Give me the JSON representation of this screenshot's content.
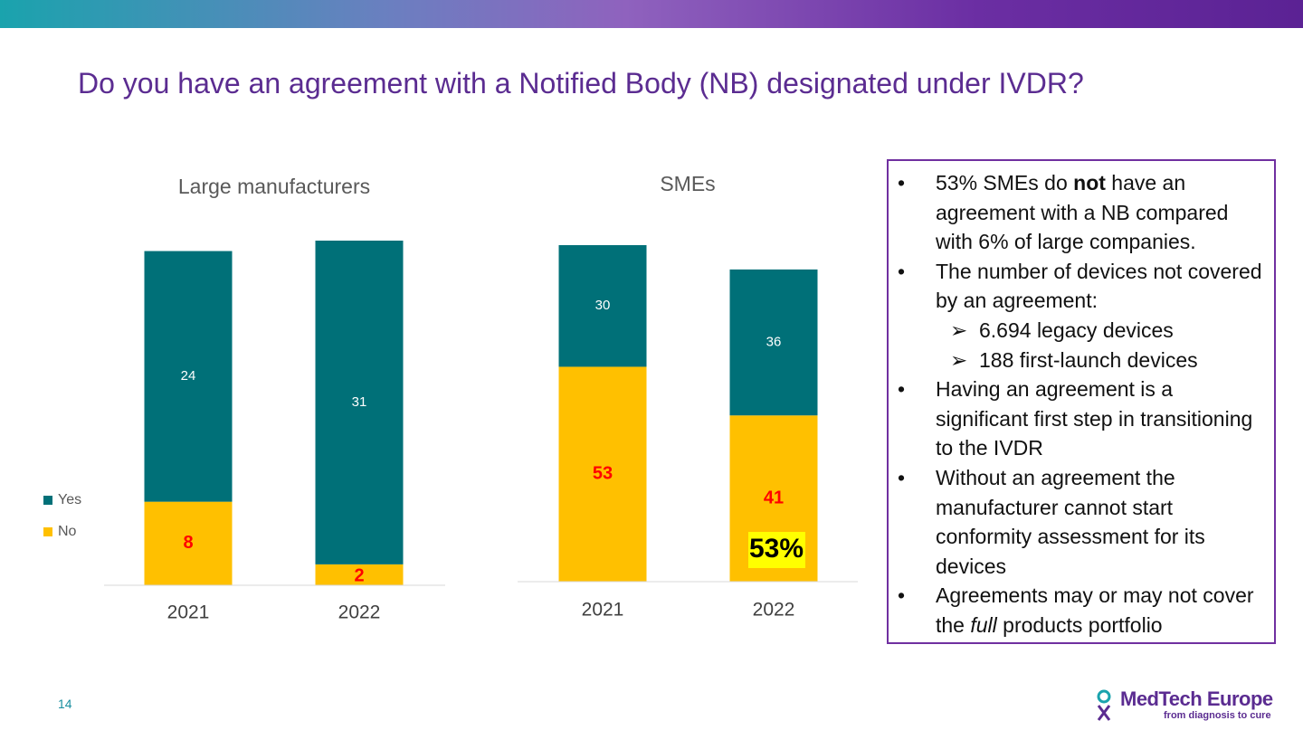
{
  "title": "Do you have an agreement with a Notified Body (NB) designated under IVDR?",
  "chart_data": [
    {
      "type": "stacked_bar",
      "title": "Large manufacturers",
      "categories": [
        "2021",
        "2022"
      ],
      "legend": "left",
      "series": [
        {
          "name": "No",
          "color": "#FFC000",
          "label_color": "#FF0000",
          "values": [
            8,
            2
          ]
        },
        {
          "name": "Yes",
          "color": "#007078",
          "label_color": "#FFFFFF",
          "values": [
            24,
            31
          ]
        }
      ]
    },
    {
      "type": "stacked_bar",
      "title": "SMEs",
      "categories": [
        "2021",
        "2022"
      ],
      "annotation": "53%",
      "series": [
        {
          "name": "No",
          "color": "#FFC000",
          "label_color": "#FF0000",
          "values": [
            53,
            41
          ]
        },
        {
          "name": "Yes",
          "color": "#007078",
          "label_color": "#FFFFFF",
          "values": [
            30,
            36
          ]
        }
      ]
    }
  ],
  "notes": [
    {
      "parts": [
        {
          "text": "53% SMEs do "
        },
        {
          "text": "not",
          "bold": true
        },
        {
          "text": " have an agreement with a NB compared with 6% of large companies."
        }
      ]
    },
    {
      "parts": [
        {
          "text": "The number of devices not covered by an agreement:"
        }
      ],
      "sub": [
        "6.694 legacy devices",
        "188 first-launch devices"
      ]
    },
    {
      "parts": [
        {
          "text": "Having an agreement is a significant first step in transitioning to the IVDR"
        }
      ]
    },
    {
      "parts": [
        {
          "text": "Without an agreement the manufacturer cannot start conformity assessment for its devices"
        }
      ]
    },
    {
      "parts": [
        {
          "text": "Agreements may or may not cover the "
        },
        {
          "text": "full",
          "italic": true
        },
        {
          "text": " products portfolio"
        }
      ]
    }
  ],
  "footer": {
    "page": "14",
    "logo": "MedTech Europe",
    "tagline": "from diagnosis to cure"
  }
}
